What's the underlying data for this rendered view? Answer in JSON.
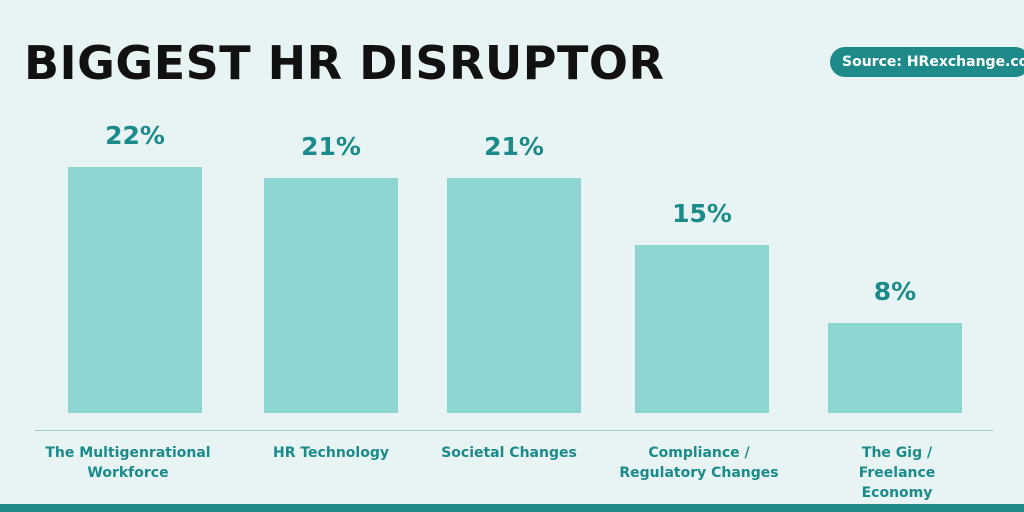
{
  "chart_data": {
    "type": "bar",
    "title": "BIGGEST HR DISRUPTOR",
    "source": "Source: HRexchange.com",
    "categories": [
      "The Multigenrational Workforce",
      "HR Technology",
      "Societal Changes",
      "Compliance / Regulatory Changes",
      "The Gig / Freelance Economy"
    ],
    "values": [
      22,
      21,
      21,
      15,
      8
    ],
    "value_labels": [
      "22%",
      "21%",
      "21%",
      "15%",
      "8%"
    ],
    "color": "#8dd5d1"
  }
}
